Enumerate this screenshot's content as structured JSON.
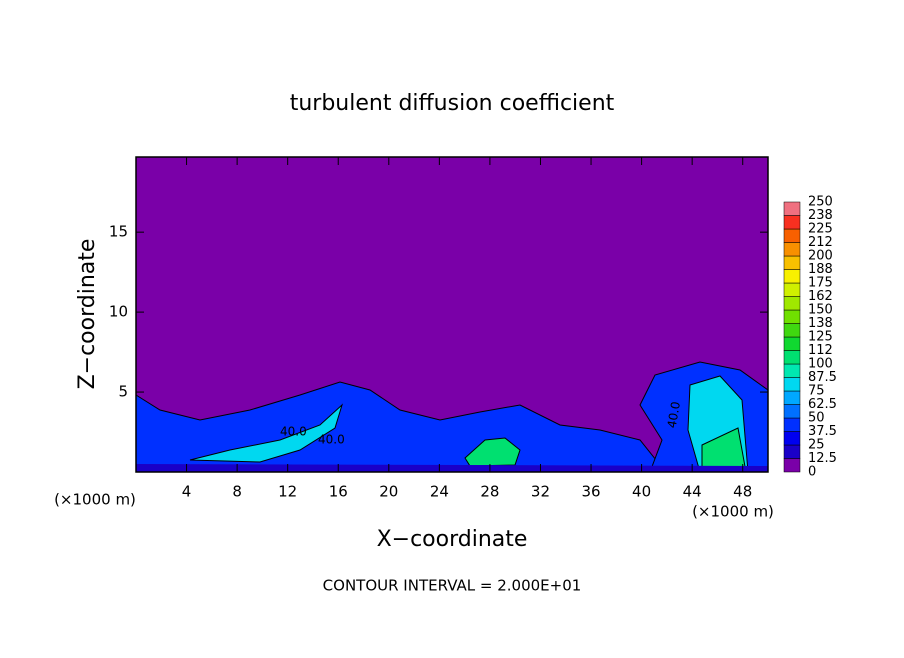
{
  "chart_data": {
    "type": "contour",
    "title": "turbulent diffusion coefficient",
    "x_label": "X−coordinate",
    "y_label": "Z−coordinate",
    "x_unit_left": "(×1000 m)",
    "x_unit_right": "(×1000 m)",
    "footer": "CONTOUR INTERVAL = 2.000E+01",
    "contour_labels": [
      "40.0",
      "40.0",
      "40.0"
    ],
    "background_color": "#7a00a8",
    "xlim": [
      0,
      50
    ],
    "xticks": [
      4,
      8,
      12,
      16,
      20,
      24,
      28,
      32,
      36,
      40,
      44,
      48
    ],
    "ylim": [
      0,
      19.7
    ],
    "yticks": [
      5,
      10,
      15
    ],
    "colorbar": {
      "levels": [
        0,
        12.5,
        25,
        37.5,
        50,
        62.5,
        75,
        87.5,
        100,
        112,
        125,
        138,
        150,
        162,
        175,
        188,
        200,
        212,
        225,
        238,
        250
      ],
      "colors": [
        "#7a00a8",
        "#1a00c8",
        "#0000f0",
        "#0030ff",
        "#0070ff",
        "#00a8ff",
        "#00d8f0",
        "#00e8b0",
        "#00e070",
        "#10d830",
        "#40d810",
        "#70e000",
        "#a0e800",
        "#d0f000",
        "#f8f000",
        "#f8c000",
        "#f89000",
        "#f86000",
        "#f83020",
        "#f07080"
      ]
    }
  }
}
